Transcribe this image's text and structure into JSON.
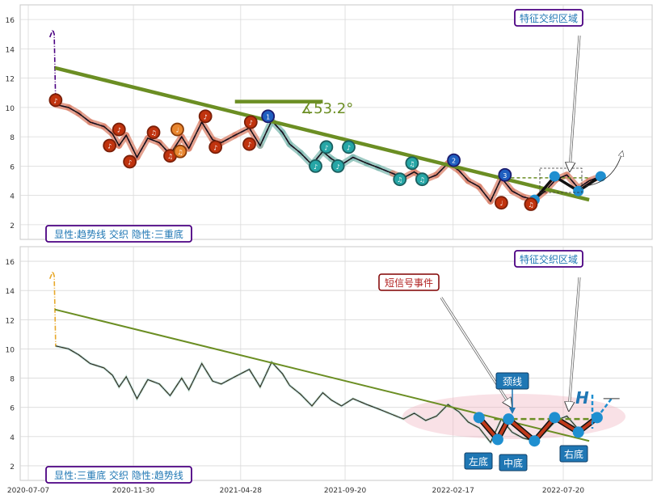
{
  "chart_data": [
    {
      "type": "line",
      "panel": "top",
      "ylim": [
        1,
        17
      ],
      "y_ticks": [
        2,
        4,
        6,
        8,
        10,
        12,
        14,
        16
      ],
      "x_ticks": [
        "2020-07-07",
        "2020-11-30",
        "2021-04-28",
        "2021-09-20",
        "2022-02-17",
        "2022-07-20"
      ],
      "grid": true,
      "price_series": {
        "x": [
          "2020-08-06",
          "2020-08-10",
          "2020-08-12",
          "2020-08-14",
          "2020-09-01",
          "2020-09-15",
          "2020-10-01",
          "2020-10-20",
          "2020-11-01",
          "2020-11-10",
          "2020-11-20",
          "2020-12-05",
          "2020-12-20",
          "2021-01-05",
          "2021-01-20",
          "2021-02-05",
          "2021-02-15",
          "2021-03-05",
          "2021-03-20",
          "2021-04-01",
          "2021-04-20",
          "2021-05-10",
          "2021-05-25",
          "2021-06-10",
          "2021-06-25",
          "2021-07-05",
          "2021-07-20",
          "2021-08-05",
          "2021-08-20",
          "2021-09-01",
          "2021-09-15",
          "2021-10-01",
          "2021-10-20",
          "2021-11-05",
          "2021-11-25",
          "2021-12-10",
          "2021-12-25",
          "2022-01-10",
          "2022-01-25",
          "2022-02-10",
          "2022-02-25",
          "2022-03-10",
          "2022-03-25",
          "2022-04-10",
          "2022-04-25",
          "2022-05-10",
          "2022-05-25",
          "2022-06-10",
          "2022-06-25",
          "2022-07-10",
          "2022-07-25",
          "2022-08-10",
          "2022-08-25",
          "2022-09-10"
        ],
        "y": [
          14.8,
          15.3,
          15.0,
          10.2,
          10.0,
          9.6,
          9.0,
          8.7,
          8.2,
          7.4,
          8.1,
          6.6,
          7.9,
          7.6,
          6.8,
          8.0,
          7.2,
          9.0,
          7.8,
          7.6,
          8.1,
          8.6,
          7.4,
          9.1,
          8.3,
          7.5,
          6.9,
          6.1,
          7.0,
          6.5,
          6.1,
          6.6,
          6.2,
          5.9,
          5.5,
          5.2,
          5.6,
          5.1,
          5.4,
          6.2,
          5.7,
          5.0,
          4.6,
          3.6,
          5.2,
          4.3,
          3.9,
          3.7,
          4.3,
          5.1,
          5.4,
          4.5,
          5.0,
          5.3
        ]
      },
      "trend_line": {
        "x": [
          "2020-08-13",
          "2022-08-25"
        ],
        "y": [
          12.7,
          3.7
        ]
      },
      "horizontal_ref": {
        "x": [
          "2021-04-20",
          "2021-08-20"
        ],
        "y": [
          10.4,
          10.4
        ]
      },
      "angle_label": "∡53.2°",
      "neckline": {
        "x": [
          "2022-04-15",
          "2022-08-25"
        ],
        "y": [
          5.2,
          5.2
        ]
      },
      "up_markers": [
        {
          "x": "2020-08-14",
          "y": 10.5,
          "label": "♪",
          "color": "red"
        },
        {
          "x": "2020-10-28",
          "y": 7.4,
          "label": "♪",
          "color": "red"
        },
        {
          "x": "2020-11-10",
          "y": 8.5,
          "label": "♪",
          "color": "red"
        },
        {
          "x": "2020-11-25",
          "y": 6.3,
          "label": "♪",
          "color": "red"
        },
        {
          "x": "2020-12-28",
          "y": 8.3,
          "label": "♫",
          "color": "red"
        },
        {
          "x": "2021-01-20",
          "y": 6.7,
          "label": "♫",
          "color": "red"
        },
        {
          "x": "2021-01-30",
          "y": 8.5,
          "label": "♩",
          "color": "orange"
        },
        {
          "x": "2021-02-03",
          "y": 7.0,
          "label": "♫",
          "color": "orange"
        },
        {
          "x": "2021-03-10",
          "y": 9.4,
          "label": "♪",
          "color": "red"
        },
        {
          "x": "2021-03-24",
          "y": 7.3,
          "label": "♪",
          "color": "red"
        },
        {
          "x": "2021-05-10",
          "y": 7.5,
          "label": "♪",
          "color": "red"
        },
        {
          "x": "2021-05-12",
          "y": 9.0,
          "label": "♪",
          "color": "red"
        },
        {
          "x": "2022-04-25",
          "y": 3.5,
          "label": "♩",
          "color": "red"
        },
        {
          "x": "2022-06-05",
          "y": 3.4,
          "label": "♫",
          "color": "red"
        }
      ],
      "down_markers": [
        {
          "x": "2021-06-05",
          "y": 9.4,
          "label": "1",
          "color": "blue"
        },
        {
          "x": "2021-08-10",
          "y": 6.0,
          "label": "♪",
          "color": "teal"
        },
        {
          "x": "2021-08-25",
          "y": 7.3,
          "label": "♪",
          "color": "teal"
        },
        {
          "x": "2021-09-10",
          "y": 6.0,
          "label": "♪",
          "color": "teal"
        },
        {
          "x": "2021-09-25",
          "y": 7.3,
          "label": "♪",
          "color": "teal"
        },
        {
          "x": "2021-12-05",
          "y": 5.1,
          "label": "♫",
          "color": "teal"
        },
        {
          "x": "2021-12-22",
          "y": 6.2,
          "label": "♫",
          "color": "teal"
        },
        {
          "x": "2022-01-05",
          "y": 5.1,
          "label": "♫",
          "color": "teal"
        },
        {
          "x": "2022-02-18",
          "y": 6.4,
          "label": "2",
          "color": "blue"
        },
        {
          "x": "2022-04-30",
          "y": 5.4,
          "label": "3",
          "color": "blue"
        }
      ],
      "pattern_points": {
        "x": [
          "2022-06-10",
          "2022-07-08",
          "2022-08-10",
          "2022-09-10"
        ],
        "y": [
          3.7,
          5.3,
          4.3,
          5.3
        ]
      },
      "note": "特征交织区域",
      "legend_text": "显性:趋势线 交织 隐性:三重底"
    },
    {
      "type": "line",
      "panel": "bottom",
      "ylim": [
        1,
        17
      ],
      "y_ticks": [
        2,
        4,
        6,
        8,
        10,
        12,
        14,
        16
      ],
      "x_ticks": [
        "2020-07-07",
        "2020-11-30",
        "2021-04-28",
        "2021-09-20",
        "2022-02-17",
        "2022-07-20"
      ],
      "grid": true,
      "trend_line": {
        "x": [
          "2020-08-13",
          "2022-08-25"
        ],
        "y": [
          12.7,
          3.7
        ]
      },
      "neckline": {
        "x": [
          "2022-04-15",
          "2022-08-25"
        ],
        "y": [
          5.2,
          5.2
        ]
      },
      "triple_bottom": {
        "x": [
          "2022-03-25",
          "2022-04-20",
          "2022-05-05",
          "2022-06-10",
          "2022-07-08",
          "2022-08-10",
          "2022-09-05",
          "2022-09-25"
        ],
        "y": [
          5.3,
          3.8,
          5.2,
          3.7,
          5.3,
          4.3,
          5.3,
          6.6
        ]
      },
      "labels": {
        "left_bottom": "左底",
        "middle_bottom": "中底",
        "right_bottom": "右底",
        "neckline": "颈线",
        "short_signal": "短信号事件",
        "note": "特征交织区域",
        "h_mark": "H",
        "legend_text": "显性:三重底 交织 隐性:趋势线"
      }
    }
  ]
}
